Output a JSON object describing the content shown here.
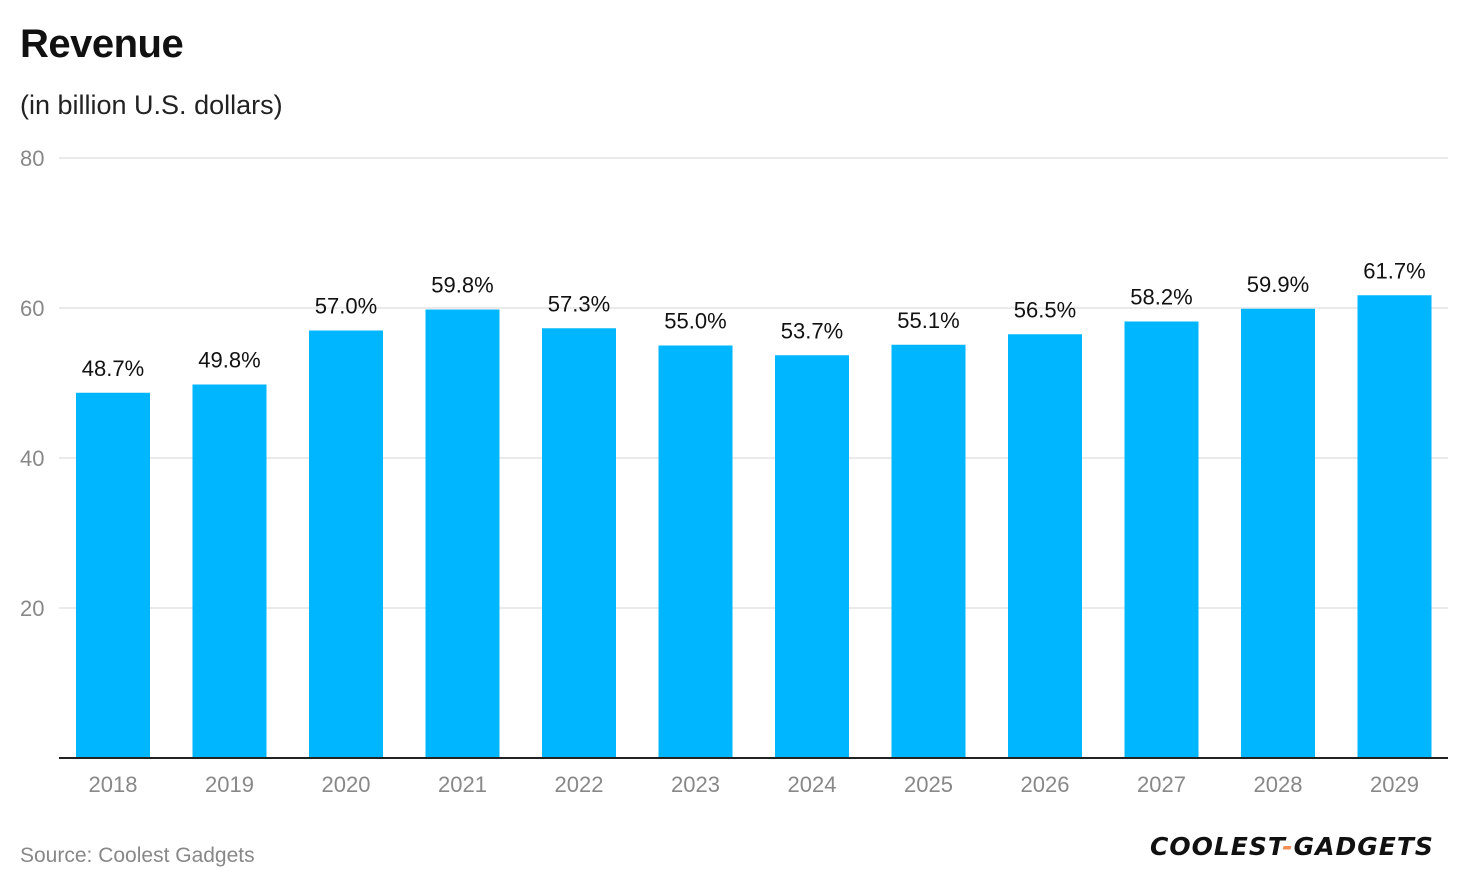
{
  "title": "Revenue",
  "subtitle": "(in billion U.S. dollars)",
  "source": "Source: Coolest Gadgets",
  "logo": {
    "left": "COOLEST",
    "dash": "-",
    "right": "GADGETS"
  },
  "colors": {
    "bar": "#00b6ff",
    "grid": "#e3e3e3",
    "axis": "#222222",
    "tick_label": "#888888",
    "data_label": "#111111",
    "logo_dash": "#f28c52"
  },
  "chart_data": {
    "type": "bar",
    "title": "Revenue",
    "subtitle": "(in billion U.S. dollars)",
    "categories": [
      "2018",
      "2019",
      "2020",
      "2021",
      "2022",
      "2023",
      "2024",
      "2025",
      "2026",
      "2027",
      "2028",
      "2029"
    ],
    "values": [
      48.7,
      49.8,
      57.0,
      59.8,
      57.3,
      55.0,
      53.7,
      55.1,
      56.5,
      58.2,
      59.9,
      61.7
    ],
    "data_labels": [
      "48.7%",
      "49.8%",
      "57.0%",
      "59.8%",
      "57.3%",
      "55.0%",
      "53.7%",
      "55.1%",
      "56.5%",
      "58.2%",
      "59.9%",
      "61.7%"
    ],
    "y_ticks": [
      20,
      40,
      60,
      80
    ],
    "ylim": [
      0,
      80
    ],
    "grid": true,
    "legend": "none"
  }
}
